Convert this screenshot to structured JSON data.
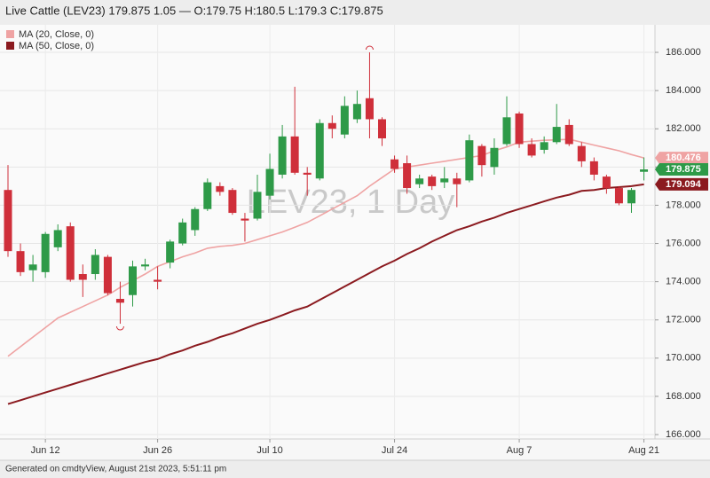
{
  "chart_data": {
    "type": "candlestick",
    "title": "Live Cattle (LEV23) 179.875 1.05 — O:179.75 H:180.5 L:179.3 C:179.875",
    "watermark": "LEV23, 1 Day",
    "footer": "Generated on cmdtyView, August 21st 2023, 5:51:11 pm",
    "categories": [
      null,
      null,
      null,
      "Jun 12",
      null,
      null,
      null,
      null,
      null,
      null,
      null,
      null,
      "Jun 26",
      null,
      null,
      null,
      null,
      null,
      null,
      null,
      null,
      "Jul 10",
      null,
      null,
      null,
      null,
      null,
      null,
      null,
      null,
      null,
      "Jul 24",
      null,
      null,
      null,
      null,
      null,
      null,
      null,
      null,
      null,
      "Aug 7",
      null,
      null,
      null,
      null,
      null,
      null,
      null,
      null,
      null,
      "Aug 21"
    ],
    "open": [
      178.8,
      175.6,
      174.6,
      174.5,
      175.8,
      176.9,
      174.4,
      174.4,
      175.3,
      173.1,
      173.3,
      174.8,
      174.1,
      175.0,
      176.0,
      176.7,
      177.8,
      179.0,
      178.8,
      177.3,
      177.3,
      178.5,
      179.6,
      181.6,
      179.7,
      179.4,
      182.3,
      181.7,
      182.5,
      183.6,
      182.5,
      180.4,
      180.2,
      179.1,
      179.5,
      179.2,
      179.4,
      179.3,
      181.1,
      180.0,
      181.2,
      182.8,
      181.2,
      180.9,
      181.3,
      182.2,
      181.1,
      180.3,
      179.5,
      178.9,
      178.1,
      179.75
    ],
    "high": [
      180.1,
      176.0,
      175.4,
      176.6,
      177.0,
      177.1,
      174.9,
      175.7,
      175.4,
      174.0,
      175.1,
      175.2,
      174.8,
      176.2,
      177.3,
      177.9,
      179.4,
      179.2,
      178.9,
      177.6,
      179.6,
      180.7,
      182.2,
      184.2,
      180.0,
      182.5,
      182.7,
      183.7,
      184.0,
      186.0,
      182.6,
      180.6,
      180.6,
      179.6,
      179.6,
      180.0,
      179.7,
      181.7,
      181.2,
      181.5,
      183.7,
      182.9,
      181.5,
      181.6,
      183.3,
      182.5,
      181.3,
      180.5,
      179.6,
      179.0,
      178.9,
      180.5
    ],
    "low": [
      175.3,
      174.3,
      174.0,
      174.2,
      175.6,
      174.0,
      173.2,
      174.1,
      173.3,
      171.8,
      172.7,
      174.6,
      173.6,
      174.7,
      175.9,
      176.4,
      177.7,
      178.5,
      177.5,
      176.1,
      177.2,
      178.3,
      179.4,
      179.6,
      178.5,
      179.3,
      181.5,
      181.5,
      182.3,
      181.5,
      181.1,
      179.7,
      178.6,
      178.9,
      178.8,
      178.9,
      177.9,
      179.2,
      179.5,
      179.6,
      181.1,
      181.0,
      180.5,
      180.7,
      181.2,
      181.1,
      180.0,
      179.3,
      178.6,
      178.0,
      177.6,
      179.3
    ],
    "close": [
      175.6,
      174.5,
      174.9,
      176.5,
      176.7,
      174.1,
      174.1,
      175.4,
      173.4,
      172.9,
      174.8,
      174.9,
      174.0,
      176.1,
      177.1,
      177.8,
      179.2,
      178.7,
      177.6,
      177.2,
      178.7,
      179.9,
      181.6,
      179.7,
      179.6,
      182.3,
      182.0,
      183.2,
      183.3,
      182.5,
      181.5,
      179.9,
      178.9,
      179.4,
      179.0,
      179.4,
      179.1,
      181.4,
      180.1,
      181.0,
      182.6,
      181.2,
      180.6,
      181.3,
      182.1,
      181.2,
      180.3,
      179.6,
      178.9,
      178.1,
      178.8,
      179.875
    ],
    "up_color": "#2e9a48",
    "down_color": "#cf2f3a",
    "series": [
      {
        "name": "MA (20, Close, 0)",
        "color": "#efa3a3",
        "values": [
          170.1,
          170.6,
          171.1,
          171.6,
          172.1,
          172.4,
          172.7,
          173.0,
          173.3,
          173.7,
          174.05,
          174.4,
          174.8,
          175.05,
          175.3,
          175.5,
          175.75,
          175.85,
          175.9,
          176.0,
          176.2,
          176.4,
          176.6,
          176.85,
          177.1,
          177.45,
          177.8,
          178.15,
          178.5,
          179.0,
          179.45,
          179.9,
          180.0,
          180.1,
          180.2,
          180.3,
          180.4,
          180.5,
          180.6,
          180.85,
          181.05,
          181.3,
          181.35,
          181.4,
          181.42,
          181.45,
          181.3,
          181.15,
          181.0,
          180.85,
          180.65,
          180.476
        ]
      },
      {
        "name": "MA (50, Close, 0)",
        "color": "#8b1a1f",
        "values": [
          167.6,
          167.8,
          168.0,
          168.2,
          168.4,
          168.6,
          168.8,
          169.0,
          169.2,
          169.4,
          169.6,
          169.8,
          169.95,
          170.2,
          170.4,
          170.65,
          170.85,
          171.1,
          171.3,
          171.55,
          171.8,
          172.0,
          172.25,
          172.5,
          172.7,
          173.05,
          173.4,
          173.75,
          174.1,
          174.45,
          174.8,
          175.1,
          175.45,
          175.75,
          176.1,
          176.4,
          176.7,
          176.9,
          177.15,
          177.35,
          177.6,
          177.8,
          178.0,
          178.2,
          178.4,
          178.55,
          178.75,
          178.8,
          178.9,
          178.95,
          179.0,
          179.094
        ]
      }
    ],
    "ylim": [
      165.77,
      187.44
    ],
    "yticks": [
      {
        "value": 166,
        "label": "166.000"
      },
      {
        "value": 168,
        "label": "168.000"
      },
      {
        "value": 170,
        "label": "170.000"
      },
      {
        "value": 172,
        "label": "172.000"
      },
      {
        "value": 174,
        "label": "174.000"
      },
      {
        "value": 176,
        "label": "176.000"
      },
      {
        "value": 178,
        "label": "178.000"
      },
      {
        "value": 180,
        "label": "180.000"
      },
      {
        "value": 182,
        "label": "182.000"
      },
      {
        "value": 184,
        "label": "184.000"
      },
      {
        "value": 186,
        "label": "186.000"
      }
    ],
    "grid": true
  }
}
